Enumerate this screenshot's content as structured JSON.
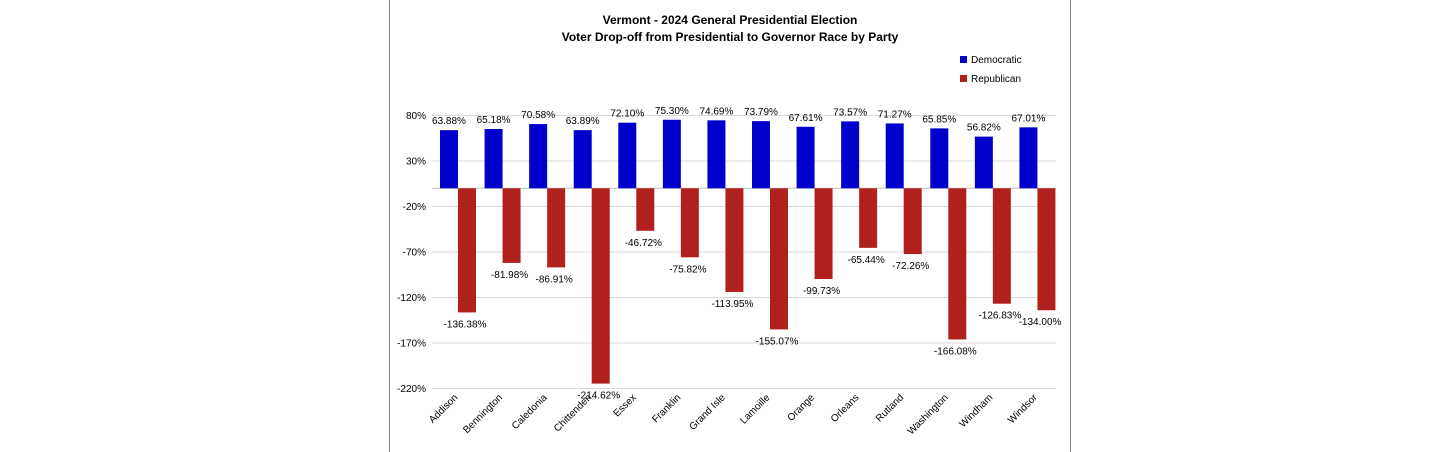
{
  "chart_data": {
    "type": "bar",
    "title": "Vermont - 2024 General Presidential Election",
    "subtitle": "Voter Drop-off from Presidential to Governor Race by Party",
    "categories": [
      "Addison",
      "Bennington",
      "Caledonia",
      "Chittenden",
      "Essex",
      "Franklin",
      "Grand Isle",
      "Lamoille",
      "Orange",
      "Orleans",
      "Rutland",
      "Washington",
      "Windham",
      "Windsor"
    ],
    "series": [
      {
        "name": "Democratic",
        "color": "#0000cc",
        "values": [
          63.88,
          65.18,
          70.58,
          63.89,
          72.1,
          75.3,
          74.69,
          73.79,
          67.61,
          73.57,
          71.27,
          65.85,
          56.82,
          67.01
        ],
        "labels": [
          "63.88%",
          "65.18%",
          "70.58%",
          "63.89%",
          "72.10%",
          "75.30%",
          "74.69%",
          "73.79%",
          "67.61%",
          "73.57%",
          "71.27%",
          "65.85%",
          "56.82%",
          "67.01%"
        ]
      },
      {
        "name": "Republican",
        "color": "#b0201c",
        "values": [
          -136.38,
          -81.98,
          -86.91,
          -214.62,
          -46.72,
          -75.82,
          -113.95,
          -155.07,
          -99.73,
          -65.44,
          -72.26,
          -166.08,
          -126.83,
          -134.0
        ],
        "labels": [
          "-136.38%",
          "-81.98%",
          "-86.91%",
          "-214.62%",
          "-46.72%",
          "-75.82%",
          "-113.95%",
          "-155.07%",
          "-99.73%",
          "-65.44%",
          "-72.26%",
          "-166.08%",
          "-126.83%",
          "-134.00%"
        ]
      }
    ],
    "yticks": [
      80,
      30,
      -20,
      -70,
      -120,
      -170,
      -220
    ],
    "ytick_labels": [
      "80%",
      "30%",
      "-20%",
      "-70%",
      "-120%",
      "-170%",
      "-220%"
    ],
    "ylim": [
      -220,
      80
    ],
    "grid": true,
    "legend_position": "top-right"
  }
}
